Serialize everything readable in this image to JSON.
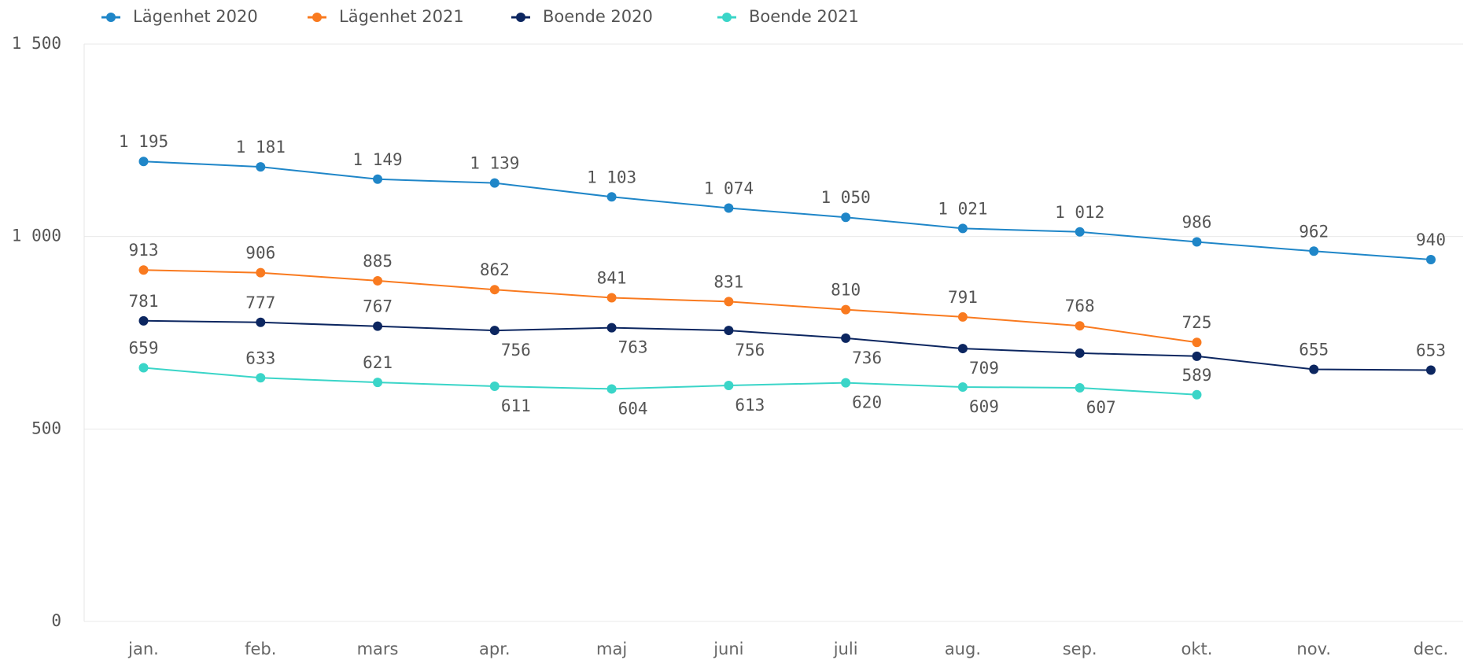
{
  "chart_data": {
    "type": "line",
    "categories": [
      "jan.",
      "feb.",
      "mars",
      "apr.",
      "maj",
      "juni",
      "juli",
      "aug.",
      "sep.",
      "okt.",
      "nov.",
      "dec."
    ],
    "series": [
      {
        "name": "Lägenhet 2020",
        "color": "#1f86c8",
        "values": [
          1195,
          1181,
          1149,
          1139,
          1103,
          1074,
          1050,
          1021,
          1012,
          986,
          962,
          940
        ],
        "value_labels": [
          "1 195",
          "1 181",
          "1 149",
          "1 139",
          "1 103",
          "1 074",
          "1 050",
          "1 021",
          "1 012",
          "986",
          "962",
          "940"
        ]
      },
      {
        "name": "Lägenhet 2021",
        "color": "#f97a1f",
        "values": [
          913,
          906,
          885,
          862,
          841,
          831,
          810,
          791,
          768,
          725,
          null,
          null
        ]
      },
      {
        "name": "Boende 2020",
        "color": "#0c2660",
        "values": [
          781,
          777,
          767,
          756,
          763,
          756,
          736,
          709,
          697,
          689,
          655,
          653
        ],
        "value_labels": [
          "781",
          "777",
          "767",
          "756",
          "763",
          "756",
          "736",
          "709",
          null,
          null,
          "655",
          "653"
        ]
      },
      {
        "name": "Boende 2021",
        "color": "#3ad5c8",
        "values": [
          659,
          633,
          621,
          611,
          604,
          613,
          620,
          609,
          607,
          589,
          null,
          null
        ]
      }
    ],
    "ylim": [
      0,
      1500
    ],
    "yticks": [
      0,
      500,
      {
        "value": 1000,
        "label": "1 000"
      },
      {
        "value": 1500,
        "label": "1 500"
      }
    ],
    "grid": true,
    "legend": "top"
  }
}
